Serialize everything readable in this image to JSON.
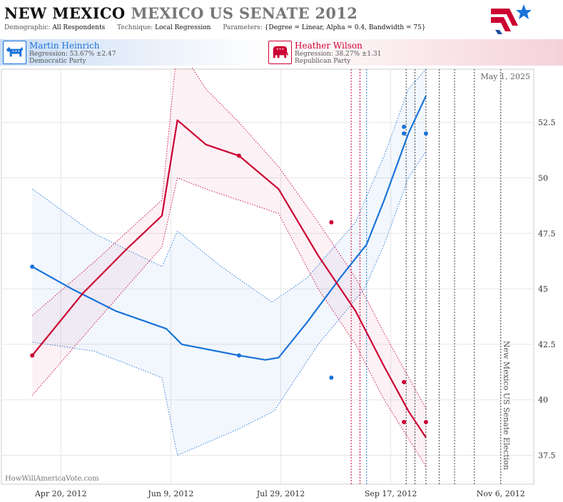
{
  "header": {
    "state": "NEW MEXICO",
    "race": "MEXICO US SENATE 2012",
    "params": [
      {
        "key": "Demographic:",
        "value": "All Respondents"
      },
      {
        "key": "Technique:",
        "value": "Local Regression"
      },
      {
        "key": "Parameters:",
        "value": "{Degree = Linear, Alpha = 0.4, Bandwidth = 75}"
      }
    ]
  },
  "candidates": [
    {
      "name": "Martin Heinrich",
      "regression": "Regression: 53.67% ±2.47",
      "party": "Democratic Party",
      "color": "#1a73d9"
    },
    {
      "name": "Heather Wilson",
      "regression": "Regression: 38.27% ±1.31",
      "party": "Republican Party",
      "color": "#cc0033"
    }
  ],
  "chart_data": {
    "type": "line",
    "date_label": "May 1, 2025",
    "watermark": "HowWillAmericaVote.com",
    "election_label": "New Mexico US Senate Election",
    "election_date": "2012-11-06",
    "x_range": [
      "2012-03-24",
      "2012-11-21"
    ],
    "ylim": [
      36.2,
      54.9
    ],
    "y_ticks": [
      37.5,
      40,
      42.5,
      45,
      47.5,
      50,
      52.5
    ],
    "y_tick_labels": [
      "37.5",
      "40",
      "42.5",
      "45",
      "47.5",
      "50",
      "52.5"
    ],
    "x_ticks": [
      "2012-04-20",
      "2012-06-09",
      "2012-07-29",
      "2012-09-17",
      "2012-11-06"
    ],
    "x_tick_labels": [
      "Apr 20, 2012",
      "Jun 9, 2012",
      "Jul 29, 2012",
      "Sep 17, 2012",
      "Nov 6, 2012"
    ],
    "grid": true,
    "vertical_markers": [
      {
        "date": "2012-08-30",
        "color": "#cc0033"
      },
      {
        "date": "2012-09-03",
        "color": "#cc0033"
      },
      {
        "date": "2012-09-06",
        "color": "#1a73d9"
      },
      {
        "date": "2012-09-24",
        "color": "#444444"
      },
      {
        "date": "2012-09-28",
        "color": "#444444"
      },
      {
        "date": "2012-10-03",
        "color": "#444444"
      },
      {
        "date": "2012-10-09",
        "color": "#444444"
      },
      {
        "date": "2012-10-16",
        "color": "#444444"
      },
      {
        "date": "2012-10-25",
        "color": "#444444"
      },
      {
        "date": "2012-11-06",
        "color": "#444444"
      }
    ],
    "series": [
      {
        "name": "Martin Heinrich",
        "color": "#1a73d9",
        "band_fill": "rgba(26,115,217,0.06)",
        "line": [
          [
            "2012-04-07",
            46.0
          ],
          [
            "2012-04-25",
            45.0
          ],
          [
            "2012-05-15",
            44.0
          ],
          [
            "2012-06-07",
            43.2
          ],
          [
            "2012-06-14",
            42.5
          ],
          [
            "2012-07-10",
            42.0
          ],
          [
            "2012-07-22",
            41.8
          ],
          [
            "2012-07-28",
            41.9
          ],
          [
            "2012-08-10",
            43.5
          ],
          [
            "2012-08-25",
            45.5
          ],
          [
            "2012-09-06",
            47.0
          ],
          [
            "2012-09-14",
            49.0
          ],
          [
            "2012-09-25",
            52.0
          ],
          [
            "2012-10-03",
            53.7
          ]
        ],
        "upper": [
          [
            "2012-04-07",
            49.5
          ],
          [
            "2012-05-05",
            47.5
          ],
          [
            "2012-06-05",
            46.0
          ],
          [
            "2012-06-12",
            47.6
          ],
          [
            "2012-07-02",
            46.0
          ],
          [
            "2012-07-25",
            44.4
          ],
          [
            "2012-08-10",
            45.5
          ],
          [
            "2012-09-01",
            48.0
          ],
          [
            "2012-09-14",
            51.0
          ],
          [
            "2012-09-25",
            54.0
          ],
          [
            "2012-10-03",
            54.9
          ]
        ],
        "lower": [
          [
            "2012-04-07",
            42.6
          ],
          [
            "2012-05-05",
            42.2
          ],
          [
            "2012-06-05",
            41.0
          ],
          [
            "2012-06-12",
            37.5
          ],
          [
            "2012-07-10",
            38.7
          ],
          [
            "2012-07-26",
            39.5
          ],
          [
            "2012-08-15",
            42.5
          ],
          [
            "2012-09-05",
            45.0
          ],
          [
            "2012-09-14",
            47.0
          ],
          [
            "2012-09-25",
            50.0
          ],
          [
            "2012-10-03",
            51.2
          ]
        ],
        "points": [
          [
            "2012-04-07",
            46.0
          ],
          [
            "2012-07-10",
            42.0
          ],
          [
            "2012-08-21",
            41.0
          ],
          [
            "2012-09-23",
            52.3
          ],
          [
            "2012-09-23",
            52.0
          ],
          [
            "2012-10-03",
            52.0
          ]
        ]
      },
      {
        "name": "Heather Wilson",
        "color": "#cc0033",
        "band_fill": "rgba(204,0,51,0.05)",
        "line": [
          [
            "2012-04-07",
            42.0
          ],
          [
            "2012-04-30",
            44.8
          ],
          [
            "2012-05-20",
            46.8
          ],
          [
            "2012-06-05",
            48.3
          ],
          [
            "2012-06-12",
            52.6
          ],
          [
            "2012-06-25",
            51.5
          ],
          [
            "2012-07-10",
            51.0
          ],
          [
            "2012-07-28",
            49.5
          ],
          [
            "2012-08-15",
            46.5
          ],
          [
            "2012-09-01",
            44.0
          ],
          [
            "2012-09-14",
            41.5
          ],
          [
            "2012-09-25",
            39.5
          ],
          [
            "2012-10-03",
            38.3
          ]
        ],
        "upper": [
          [
            "2012-04-07",
            43.8
          ],
          [
            "2012-05-05",
            46.2
          ],
          [
            "2012-06-05",
            49.0
          ],
          [
            "2012-06-12",
            56.0
          ],
          [
            "2012-06-25",
            54.0
          ],
          [
            "2012-07-10",
            52.5
          ],
          [
            "2012-07-28",
            50.5
          ],
          [
            "2012-08-15",
            48.0
          ],
          [
            "2012-09-01",
            45.5
          ],
          [
            "2012-09-14",
            43.0
          ],
          [
            "2012-10-03",
            39.6
          ]
        ],
        "lower": [
          [
            "2012-04-07",
            40.2
          ],
          [
            "2012-05-05",
            43.4
          ],
          [
            "2012-06-05",
            46.9
          ],
          [
            "2012-06-12",
            50.0
          ],
          [
            "2012-06-25",
            49.5
          ],
          [
            "2012-07-10",
            49.0
          ],
          [
            "2012-07-28",
            48.4
          ],
          [
            "2012-08-15",
            45.0
          ],
          [
            "2012-09-01",
            42.5
          ],
          [
            "2012-09-14",
            40.0
          ],
          [
            "2012-10-03",
            37.0
          ]
        ],
        "points": [
          [
            "2012-04-07",
            42.0
          ],
          [
            "2012-07-10",
            51.0
          ],
          [
            "2012-08-21",
            48.0
          ],
          [
            "2012-09-23",
            40.8
          ],
          [
            "2012-09-23",
            39.0
          ],
          [
            "2012-10-03",
            39.0
          ]
        ]
      }
    ]
  }
}
